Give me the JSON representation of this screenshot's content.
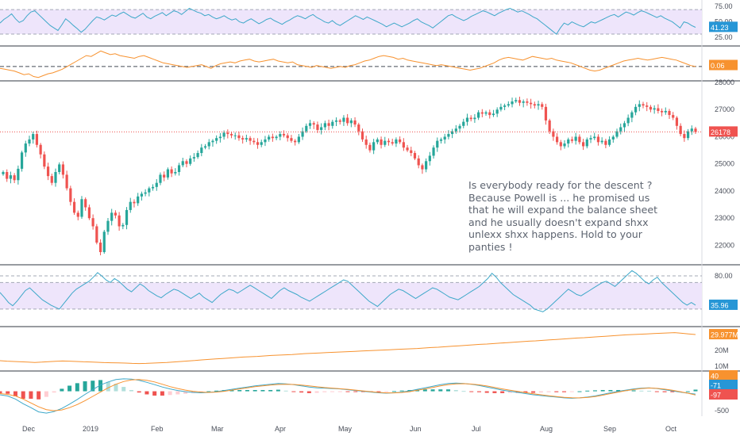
{
  "chart_data": {
    "type": "candlestick",
    "x_ticks": [
      "Dec",
      "2019",
      "Feb",
      "Mar",
      "Apr",
      "May",
      "Jun",
      "Jul",
      "Aug",
      "Sep",
      "Oct"
    ],
    "price": {
      "ylim": [
        21400,
        28000
      ],
      "y_ticks": [
        "28000",
        "27000",
        "26000",
        "25000",
        "24000",
        "23000",
        "22000"
      ],
      "last_value": "26178",
      "last_price_value": 26178,
      "closes": [
        24700,
        24450,
        24580,
        24400,
        24820,
        25420,
        25750,
        25900,
        26100,
        25700,
        25350,
        24900,
        24550,
        24300,
        24700,
        24980,
        24600,
        24100,
        23600,
        23200,
        23050,
        23700,
        23400,
        23000,
        22700,
        22100,
        21750,
        22500,
        22900,
        23200,
        23100,
        22700,
        22750,
        23300,
        23600,
        23550,
        23800,
        23900,
        23950,
        24100,
        24150,
        24300,
        24600,
        24500,
        24800,
        24650,
        24700,
        24950,
        25100,
        25000,
        25200,
        25250,
        25400,
        25600,
        25650,
        25800,
        25850,
        25950,
        26000,
        26150,
        26100,
        26050,
        26050,
        25950,
        25900,
        25950,
        25850,
        25800,
        25700,
        25800,
        25900,
        26000,
        25950,
        26000,
        26100,
        26050,
        25950,
        25850,
        25800,
        26000,
        26200,
        26400,
        26500,
        26450,
        26250,
        26350,
        26500,
        26400,
        26550,
        26600,
        26550,
        26700,
        26500,
        26600,
        26450,
        26200,
        25900,
        25700,
        25500,
        25800,
        25900,
        25700,
        25850,
        25800,
        25750,
        25900,
        25800,
        25600,
        25500,
        25400,
        25200,
        24950,
        24800,
        25100,
        25300,
        25600,
        25850,
        25900,
        26000,
        26100,
        26200,
        26300,
        26400,
        26550,
        26700,
        26650,
        26700,
        26900,
        26850,
        26900,
        26800,
        26850,
        27000,
        27100,
        27150,
        27200,
        27300,
        27350,
        27250,
        27300,
        27250,
        27200,
        27150,
        27200,
        27100,
        26600,
        26200,
        26000,
        25800,
        25650,
        25750,
        25900,
        25850,
        26000,
        25800,
        25650,
        25900,
        25950,
        26000,
        25800,
        25850,
        25700,
        25900,
        26000,
        26200,
        26350,
        26500,
        26700,
        26900,
        27100,
        27200,
        27150,
        27100,
        27000,
        27050,
        26950,
        26900,
        26950,
        26800,
        26700,
        26400,
        26100,
        25950,
        26200,
        26300,
        26178
      ],
      "highlight": {
        "index": 131,
        "low": 26600
      }
    },
    "top_rsi": {
      "ylim": [
        12,
        83
      ],
      "y_ticks": [
        "75.00",
        "50.00",
        "25.00"
      ],
      "band": [
        30,
        70
      ],
      "last_value": "41.23",
      "values": [
        48,
        54,
        58,
        63,
        55,
        49,
        52,
        60,
        66,
        68,
        62,
        56,
        50,
        44,
        40,
        36,
        45,
        55,
        50,
        44,
        39,
        33,
        38,
        45,
        52,
        58,
        56,
        53,
        57,
        61,
        59,
        63,
        66,
        62,
        58,
        56,
        60,
        64,
        58,
        55,
        59,
        62,
        65,
        60,
        64,
        68,
        66,
        62,
        67,
        72,
        69,
        66,
        64,
        60,
        62,
        58,
        55,
        57,
        60,
        56,
        53,
        55,
        50,
        48,
        52,
        55,
        51,
        47,
        50,
        54,
        56,
        52,
        49,
        46,
        50,
        53,
        57,
        60,
        58,
        55,
        59,
        62,
        57,
        54,
        50,
        48,
        52,
        47,
        44,
        48,
        52,
        56,
        60,
        57,
        54,
        58,
        55,
        52,
        49,
        46,
        42,
        45,
        48,
        45,
        42,
        45,
        48,
        52,
        55,
        50,
        47,
        44,
        40,
        45,
        50,
        55,
        60,
        62,
        58,
        55,
        52,
        55,
        59,
        62,
        65,
        68,
        66,
        63,
        60,
        64,
        67,
        70,
        72,
        69,
        66,
        68,
        65,
        62,
        58,
        55,
        50,
        45,
        40,
        35,
        30,
        40,
        48,
        45,
        50,
        47,
        44,
        42,
        46,
        50,
        48,
        51,
        54,
        57,
        60,
        62,
        58,
        62,
        66,
        64,
        61,
        65,
        68,
        66,
        63,
        60,
        57,
        60,
        56,
        53,
        50,
        45,
        40,
        50,
        48,
        44,
        41
      ],
      "note": "series scrolls left"
    },
    "osc2": {
      "last_value": "0.06",
      "values": [
        -0.1,
        -0.15,
        -0.2,
        -0.25,
        -0.35,
        -0.45,
        -0.4,
        -0.55,
        -0.6,
        -0.5,
        -0.4,
        -0.35,
        -0.25,
        -0.15,
        0.0,
        0.15,
        0.3,
        0.45,
        0.6,
        0.55,
        0.7,
        0.85,
        0.75,
        0.65,
        0.7,
        0.6,
        0.55,
        0.5,
        0.45,
        0.55,
        0.6,
        0.5,
        0.4,
        0.3,
        0.2,
        0.15,
        0.1,
        0.05,
        0.0,
        -0.05,
        0.0,
        0.05,
        0.1,
        0.0,
        -0.1,
        0.05,
        0.15,
        0.2,
        0.25,
        0.2,
        0.3,
        0.35,
        0.4,
        0.3,
        0.25,
        0.3,
        0.35,
        0.4,
        0.3,
        0.25,
        0.2,
        0.25,
        0.1,
        0.05,
        0.0,
        -0.05,
        0.05,
        0.0,
        -0.05,
        -0.1,
        -0.05,
        0.0,
        -0.05,
        0.05,
        0.1,
        0.2,
        0.3,
        0.35,
        0.45,
        0.55,
        0.6,
        0.55,
        0.5,
        0.4,
        0.45,
        0.35,
        0.3,
        0.25,
        0.2,
        0.15,
        0.1,
        0.05,
        0.1,
        0.05,
        0.0,
        -0.05,
        -0.1,
        -0.15,
        -0.2,
        -0.15,
        -0.1,
        0.0,
        0.1,
        0.2,
        0.35,
        0.45,
        0.5,
        0.45,
        0.4,
        0.35,
        0.45,
        0.55,
        0.5,
        0.45,
        0.4,
        0.45,
        0.35,
        0.3,
        0.25,
        0.2,
        0.1,
        0.0,
        -0.1,
        -0.2,
        -0.25,
        -0.2,
        -0.1,
        0.0,
        0.1,
        0.2,
        0.3,
        0.35,
        0.4,
        0.45,
        0.4,
        0.35,
        0.4,
        0.45,
        0.5,
        0.45,
        0.4,
        0.35,
        0.25,
        0.15,
        0.05,
        0.0
      ],
      "zero_line": 0
    },
    "mid_rsi": {
      "ylim": [
        12,
        92
      ],
      "y_ticks": [
        "80.00"
      ],
      "band": [
        30,
        70
      ],
      "last_value": "35.96",
      "values": [
        55,
        48,
        40,
        35,
        42,
        50,
        58,
        62,
        56,
        50,
        44,
        40,
        36,
        33,
        30,
        38,
        46,
        54,
        60,
        64,
        68,
        72,
        78,
        85,
        80,
        74,
        70,
        76,
        72,
        66,
        60,
        56,
        62,
        68,
        64,
        58,
        54,
        50,
        47,
        52,
        56,
        60,
        58,
        54,
        50,
        46,
        50,
        54,
        48,
        44,
        40,
        46,
        52,
        56,
        60,
        58,
        54,
        58,
        62,
        66,
        62,
        58,
        54,
        50,
        46,
        52,
        58,
        62,
        58,
        55,
        52,
        48,
        45,
        42,
        46,
        50,
        54,
        58,
        62,
        66,
        70,
        74,
        72,
        66,
        60,
        54,
        48,
        42,
        38,
        34,
        40,
        46,
        52,
        56,
        60,
        58,
        54,
        50,
        46,
        50,
        54,
        58,
        62,
        60,
        56,
        52,
        48,
        46,
        44,
        48,
        52,
        56,
        60,
        64,
        70,
        76,
        84,
        78,
        70,
        64,
        58,
        52,
        48,
        44,
        40,
        36,
        30,
        28,
        26,
        30,
        36,
        42,
        48,
        54,
        60,
        56,
        52,
        50,
        54,
        58,
        62,
        66,
        70,
        72,
        68,
        64,
        70,
        76,
        82,
        88,
        84,
        78,
        72,
        68,
        74,
        78,
        70,
        64,
        58,
        52,
        46,
        40,
        36,
        40,
        35.96
      ]
    },
    "volume_line": {
      "ylim": [
        8,
        34
      ],
      "y_ticks": [
        "20M",
        "10M"
      ],
      "last_value": "29.977M",
      "values": [
        13.5,
        13.2,
        13,
        12.8,
        12.6,
        12.4,
        12.6,
        12.9,
        13.1,
        13.3,
        13.2,
        13,
        12.8,
        12.7,
        12.5,
        12.3,
        12.2,
        12.1,
        12,
        11.8,
        11.7,
        11.8,
        12,
        12.2,
        12.4,
        12.7,
        13,
        13.3,
        13.6,
        14,
        14.3,
        14.6,
        14.9,
        15.2,
        15.5,
        15.8,
        16,
        16.2,
        16.5,
        16.8,
        17,
        17.2,
        17.4,
        17.7,
        18,
        18.2,
        18.4,
        18.6,
        18.8,
        19,
        19.2,
        19.4,
        19.6,
        19.8,
        20,
        20.2,
        20.4,
        20.6,
        20.8,
        21,
        21.2,
        21.5,
        21.8,
        22,
        22.3,
        22.6,
        22.9,
        23.2,
        23.5,
        23.8,
        24,
        24.3,
        24.6,
        24.9,
        25.2,
        25.5,
        25.8,
        26,
        26.3,
        26.6,
        26.9,
        27.2,
        27.5,
        27.8,
        28,
        28.3,
        28.6,
        28.9,
        29.2,
        29.5,
        29.8,
        30,
        30.2,
        30.4,
        30.6,
        30.8,
        31,
        31.2,
        30.8,
        30.4,
        29.977
      ]
    },
    "macd": {
      "ylim": [
        -640,
        480
      ],
      "y_ticks": [
        "-500"
      ],
      "last_values": {
        "top": "40",
        "macd": "-71",
        "signal": "-97"
      },
      "macd_values": [
        -90,
        -120,
        -200,
        -320,
        -420,
        -530,
        -560,
        -520,
        -440,
        -330,
        -210,
        -80,
        40,
        160,
        240,
        300,
        320,
        310,
        280,
        230,
        170,
        110,
        60,
        20,
        -10,
        -30,
        -40,
        -30,
        -10,
        20,
        50,
        80,
        110,
        140,
        160,
        180,
        200,
        190,
        170,
        140,
        110,
        90,
        80,
        70,
        60,
        40,
        20,
        0,
        -20,
        -40,
        -50,
        -40,
        -20,
        10,
        50,
        90,
        130,
        170,
        200,
        210,
        200,
        180,
        150,
        110,
        70,
        30,
        0,
        -30,
        -60,
        -90,
        -110,
        -130,
        -150,
        -170,
        -180,
        -170,
        -150,
        -120,
        -80,
        -40,
        0,
        30,
        60,
        80,
        90,
        70,
        40,
        10,
        -20,
        -50,
        -71
      ],
      "signal_values": [
        -60,
        -80,
        -120,
        -200,
        -300,
        -400,
        -470,
        -500,
        -480,
        -420,
        -340,
        -240,
        -130,
        -20,
        90,
        180,
        250,
        290,
        300,
        280,
        240,
        180,
        120,
        70,
        30,
        0,
        -20,
        -30,
        -20,
        0,
        30,
        60,
        90,
        120,
        140,
        160,
        175,
        180,
        175,
        160,
        140,
        115,
        95,
        80,
        65,
        50,
        30,
        10,
        -10,
        -30,
        -42,
        -42,
        -32,
        -10,
        25,
        60,
        100,
        140,
        170,
        190,
        195,
        185,
        165,
        135,
        100,
        60,
        25,
        -5,
        -35,
        -65,
        -90,
        -115,
        -135,
        -155,
        -168,
        -170,
        -160,
        -135,
        -100,
        -60,
        -20,
        15,
        45,
        70,
        82,
        75,
        55,
        25,
        -10,
        -50,
        -97
      ]
    }
  },
  "annotation": {
    "lines": [
      "Is everybody ready for the descent ?",
      "Because Powell is ... he promised us",
      "that he will expand the balance sheet",
      "and he usually doesn't expand shxx",
      "unlexx shxx happens. Hold to your",
      "panties !"
    ]
  },
  "colors": {
    "up": "#26a69a",
    "down": "#ef5350",
    "rsi_line": "#3ea8c9",
    "orange": "#f7922f",
    "band_fill": "#eee5fb",
    "band_dash": "#a3a8b5",
    "label_blue": "#2696d6",
    "label_red": "#ef5350",
    "pane_border": "#323741"
  }
}
